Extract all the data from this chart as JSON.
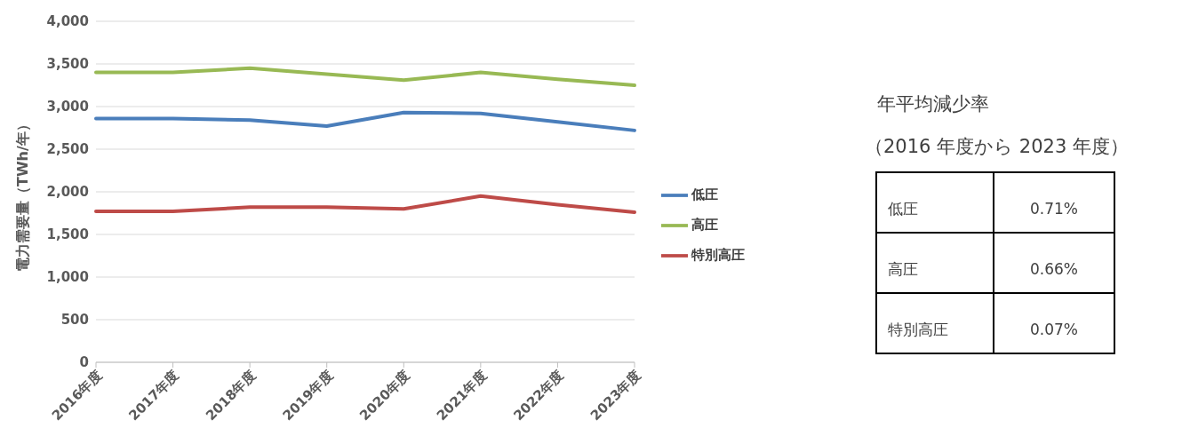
{
  "chart_data": [
    {
      "type": "line",
      "ylabel": "電力需要量（TWh/年）",
      "categories": [
        "2016年度",
        "2017年度",
        "2018年度",
        "2019年度",
        "2020年度",
        "2021年度",
        "2022年度",
        "2023年度"
      ],
      "series": [
        {
          "name": "低圧",
          "color": "#4a7ebb",
          "values": [
            2860,
            2860,
            2840,
            2770,
            2930,
            2920,
            2820,
            2720
          ]
        },
        {
          "name": "高圧",
          "color": "#98b954",
          "values": [
            3400,
            3400,
            3450,
            3380,
            3310,
            3400,
            3320,
            3250
          ]
        },
        {
          "name": "特別高圧",
          "color": "#be4b48",
          "values": [
            1770,
            1770,
            1820,
            1820,
            1800,
            1950,
            1850,
            1760
          ]
        }
      ],
      "ylim": [
        0,
        4000
      ],
      "yticks": [
        0,
        500,
        {
          "value": 1000,
          "label": "1,000"
        },
        {
          "value": 1500,
          "label": "1,500"
        },
        {
          "value": 2000,
          "label": "2,000"
        },
        {
          "value": 2500,
          "label": "2,500"
        },
        {
          "value": 3000,
          "label": "3,000"
        },
        {
          "value": 3500,
          "label": "3,500"
        },
        {
          "value": 4000,
          "label": "4,000"
        }
      ],
      "grid": "y",
      "legend": "right",
      "marker": "none",
      "line_style": "solid"
    },
    {
      "type": "other",
      "title": "年平均減少率",
      "subtitle": "（2016 年度から 2023 年度）",
      "categories": [
        "低圧",
        "高圧",
        "特別高圧"
      ],
      "value_labels": [
        "0.71%",
        "0.66%",
        "0.07%"
      ]
    }
  ]
}
